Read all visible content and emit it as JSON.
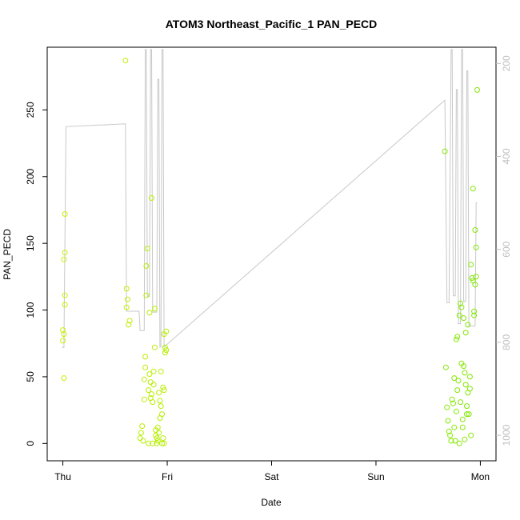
{
  "chart_data": {
    "type": "scatter",
    "title": "ATOM3 Northeast_Pacific_1 PAN_PECD",
    "xlabel": "Date",
    "ylabel": "PAN_PECD",
    "x_tick_labels": [
      "Thu",
      "Fri",
      "Sat",
      "Sun",
      "Mon"
    ],
    "x_tick_values": [
      0,
      1,
      2,
      3,
      4
    ],
    "xlim": [
      -0.15,
      4.15
    ],
    "ylim": [
      -13,
      297
    ],
    "y_ticks": [
      0,
      50,
      100,
      150,
      200,
      250
    ],
    "right_axis": {
      "ylim": [
        1055,
        165
      ],
      "reversed": true,
      "ticks": [
        200,
        400,
        600,
        800,
        1000
      ],
      "color": "#bebebe"
    },
    "grid": false,
    "legend": "none",
    "series": [
      {
        "kind": "points",
        "marker": "open-circle",
        "color_gradient": [
          "#c8f000",
          "#7fe800"
        ],
        "points": [
          [
            0.0,
            85
          ],
          [
            0.0,
            77
          ],
          [
            0.01,
            82
          ],
          [
            0.01,
            138
          ],
          [
            0.02,
            172
          ],
          [
            0.02,
            111
          ],
          [
            0.02,
            104
          ],
          [
            0.02,
            143
          ],
          [
            0.01,
            49
          ],
          [
            0.6,
            287
          ],
          [
            0.61,
            116
          ],
          [
            0.61,
            102
          ],
          [
            0.62,
            108
          ],
          [
            0.63,
            89
          ],
          [
            0.64,
            92
          ],
          [
            0.74,
            4
          ],
          [
            0.75,
            8
          ],
          [
            0.76,
            13
          ],
          [
            0.77,
            2
          ],
          [
            0.78,
            33
          ],
          [
            0.78,
            48
          ],
          [
            0.79,
            57
          ],
          [
            0.79,
            65
          ],
          [
            0.8,
            133
          ],
          [
            0.8,
            111
          ],
          [
            0.81,
            146
          ],
          [
            0.82,
            0
          ],
          [
            0.82,
            40
          ],
          [
            0.83,
            52
          ],
          [
            0.83,
            98
          ],
          [
            0.84,
            46
          ],
          [
            0.84,
            34
          ],
          [
            0.85,
            184
          ],
          [
            0.85,
            37
          ],
          [
            0.86,
            31
          ],
          [
            0.86,
            0
          ],
          [
            0.87,
            54
          ],
          [
            0.87,
            44
          ],
          [
            0.88,
            101
          ],
          [
            0.88,
            72
          ],
          [
            0.89,
            10
          ],
          [
            0.89,
            6
          ],
          [
            0.9,
            4
          ],
          [
            0.9,
            0
          ],
          [
            0.91,
            12
          ],
          [
            0.91,
            2
          ],
          [
            0.92,
            8
          ],
          [
            0.92,
            38
          ],
          [
            0.93,
            32
          ],
          [
            0.93,
            19
          ],
          [
            0.94,
            54
          ],
          [
            0.94,
            28
          ],
          [
            0.95,
            22
          ],
          [
            0.95,
            0
          ],
          [
            0.96,
            4
          ],
          [
            0.96,
            42
          ],
          [
            0.97,
            82
          ],
          [
            0.97,
            40
          ],
          [
            0.98,
            72
          ],
          [
            0.98,
            68
          ],
          [
            0.99,
            70
          ],
          [
            0.99,
            84
          ],
          [
            0.97,
            0
          ],
          [
            3.66,
            219
          ],
          [
            3.67,
            57
          ],
          [
            3.68,
            27
          ],
          [
            3.69,
            17
          ],
          [
            3.7,
            9
          ],
          [
            3.71,
            6
          ],
          [
            3.72,
            2
          ],
          [
            3.73,
            33
          ],
          [
            3.74,
            30
          ],
          [
            3.75,
            49
          ],
          [
            3.75,
            12
          ],
          [
            3.76,
            2
          ],
          [
            3.77,
            78
          ],
          [
            3.77,
            24
          ],
          [
            3.78,
            80
          ],
          [
            3.78,
            40
          ],
          [
            3.79,
            47
          ],
          [
            3.8,
            0
          ],
          [
            3.8,
            96
          ],
          [
            3.81,
            105
          ],
          [
            3.81,
            31
          ],
          [
            3.82,
            60
          ],
          [
            3.82,
            102
          ],
          [
            3.83,
            18
          ],
          [
            3.83,
            12
          ],
          [
            3.84,
            58
          ],
          [
            3.84,
            94
          ],
          [
            3.85,
            53
          ],
          [
            3.85,
            3
          ],
          [
            3.86,
            83
          ],
          [
            3.86,
            44
          ],
          [
            3.87,
            28
          ],
          [
            3.87,
            22
          ],
          [
            3.88,
            89
          ],
          [
            3.88,
            38
          ],
          [
            3.89,
            22
          ],
          [
            3.9,
            50
          ],
          [
            3.9,
            41
          ],
          [
            3.91,
            6
          ],
          [
            3.91,
            134
          ],
          [
            3.92,
            124
          ],
          [
            3.93,
            122
          ],
          [
            3.93,
            191
          ],
          [
            3.94,
            99
          ],
          [
            3.94,
            96
          ],
          [
            3.95,
            160
          ],
          [
            3.95,
            119
          ],
          [
            3.96,
            147
          ],
          [
            3.96,
            125
          ],
          [
            3.97,
            265
          ]
        ]
      },
      {
        "kind": "line",
        "axis": "right",
        "color": "#c8c8c8",
        "points": [
          [
            -0.01,
            811
          ],
          [
            0.01,
            811
          ],
          [
            0.03,
            336
          ],
          [
            0.6,
            330
          ],
          [
            0.61,
            733
          ],
          [
            0.73,
            733
          ],
          [
            0.74,
            775
          ],
          [
            0.78,
            775
          ],
          [
            0.79,
            170
          ],
          [
            0.8,
            170
          ],
          [
            0.81,
            701
          ],
          [
            0.83,
            701
          ],
          [
            0.84,
            170
          ],
          [
            0.85,
            170
          ],
          [
            0.86,
            735
          ],
          [
            0.9,
            735
          ],
          [
            0.91,
            234
          ],
          [
            0.92,
            234
          ],
          [
            0.93,
            810
          ],
          [
            0.94,
            810
          ],
          [
            0.95,
            170
          ],
          [
            0.96,
            170
          ],
          [
            0.97,
            810
          ],
          [
            3.66,
            279
          ],
          [
            3.68,
            715
          ],
          [
            3.7,
            715
          ],
          [
            3.72,
            170
          ],
          [
            3.73,
            170
          ],
          [
            3.74,
            700
          ],
          [
            3.76,
            700
          ],
          [
            3.77,
            256
          ],
          [
            3.78,
            256
          ],
          [
            3.79,
            760
          ],
          [
            3.81,
            760
          ],
          [
            3.82,
            170
          ],
          [
            3.83,
            170
          ],
          [
            3.84,
            712
          ],
          [
            3.86,
            712
          ],
          [
            3.87,
            216
          ],
          [
            3.88,
            216
          ],
          [
            3.89,
            765
          ],
          [
            3.95,
            765
          ],
          [
            3.96,
            500
          ],
          [
            3.97,
            500
          ]
        ]
      }
    ]
  }
}
